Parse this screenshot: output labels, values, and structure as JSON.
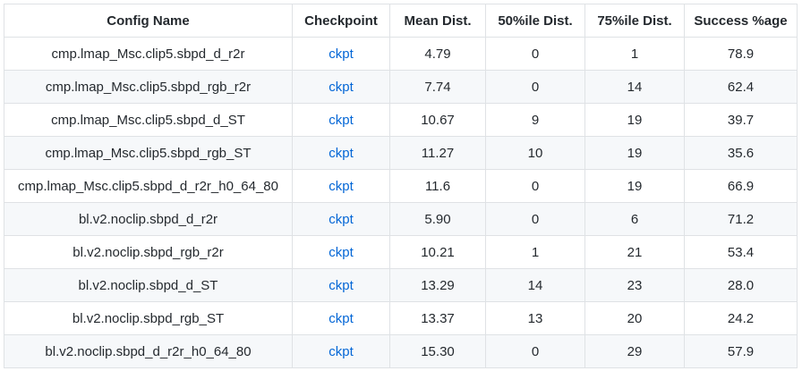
{
  "table": {
    "headers": [
      "Config Name",
      "Checkpoint",
      "Mean Dist.",
      "50%ile Dist.",
      "75%ile Dist.",
      "Success %age"
    ],
    "rows": [
      [
        "cmp.lmap_Msc.clip5.sbpd_d_r2r",
        "ckpt",
        "4.79",
        "0",
        "1",
        "78.9"
      ],
      [
        "cmp.lmap_Msc.clip5.sbpd_rgb_r2r",
        "ckpt",
        "7.74",
        "0",
        "14",
        "62.4"
      ],
      [
        "cmp.lmap_Msc.clip5.sbpd_d_ST",
        "ckpt",
        "10.67",
        "9",
        "19",
        "39.7"
      ],
      [
        "cmp.lmap_Msc.clip5.sbpd_rgb_ST",
        "ckpt",
        "11.27",
        "10",
        "19",
        "35.6"
      ],
      [
        "cmp.lmap_Msc.clip5.sbpd_d_r2r_h0_64_80",
        "ckpt",
        "11.6",
        "0",
        "19",
        "66.9"
      ],
      [
        "bl.v2.noclip.sbpd_d_r2r",
        "ckpt",
        "5.90",
        "0",
        "6",
        "71.2"
      ],
      [
        "bl.v2.noclip.sbpd_rgb_r2r",
        "ckpt",
        "10.21",
        "1",
        "21",
        "53.4"
      ],
      [
        "bl.v2.noclip.sbpd_d_ST",
        "ckpt",
        "13.29",
        "14",
        "23",
        "28.0"
      ],
      [
        "bl.v2.noclip.sbpd_rgb_ST",
        "ckpt",
        "13.37",
        "13",
        "20",
        "24.2"
      ],
      [
        "bl.v2.noclip.sbpd_d_r2r_h0_64_80",
        "ckpt",
        "15.30",
        "0",
        "29",
        "57.9"
      ]
    ]
  },
  "colors": {
    "link": "#0366d6",
    "border": "#dfe2e5",
    "stripe": "#f6f8fa",
    "text": "#24292e"
  }
}
